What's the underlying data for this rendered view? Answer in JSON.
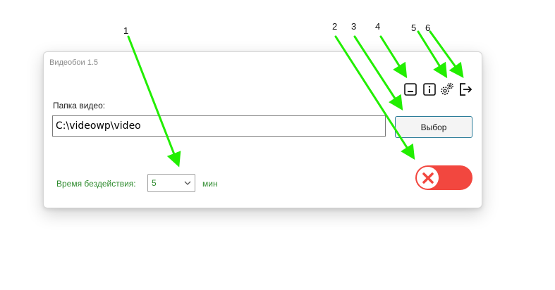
{
  "window": {
    "title": "Видеобои 1.5"
  },
  "toolbar": {
    "minimize_icon": "minimize-icon",
    "info_icon": "info-icon",
    "settings_icon": "gears-icon",
    "exit_icon": "exit-icon"
  },
  "folder": {
    "label": "Папка видео:",
    "path": "C:\\videowp\\video",
    "browse_label": "Выбор"
  },
  "idle": {
    "label": "Время бездействия:",
    "value": "5",
    "unit": "мин"
  },
  "toggle": {
    "state": "off",
    "color": "#f2473f"
  },
  "annotations": [
    "1",
    "2",
    "3",
    "4",
    "5",
    "6"
  ],
  "colors": {
    "arrow": "#22ee00",
    "label_green": "#2e8b2e",
    "browse_border": "#2d7d9a"
  }
}
